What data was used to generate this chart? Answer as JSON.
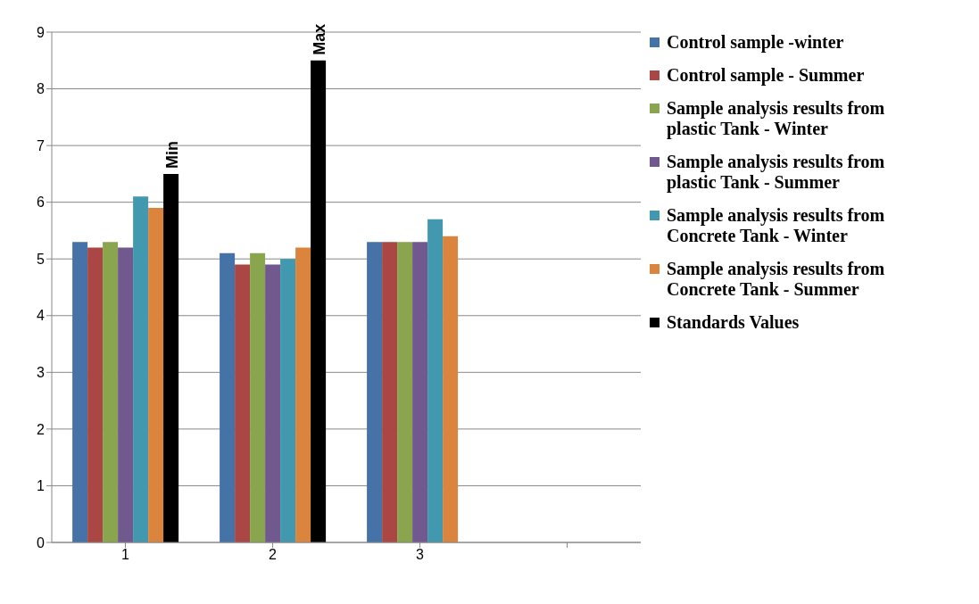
{
  "chart_data": {
    "type": "bar",
    "categories": [
      "1",
      "2",
      "3",
      null
    ],
    "series": [
      {
        "name": "Control sample -winter",
        "color": "#4572a7",
        "values": [
          5.3,
          5.1,
          5.3,
          null
        ]
      },
      {
        "name": "Control sample - Summer",
        "color": "#aa4643",
        "values": [
          5.2,
          4.9,
          5.3,
          null
        ]
      },
      {
        "name": "Sample analysis results from plastic Tank - Winter",
        "color": "#89a54e",
        "values": [
          5.3,
          5.1,
          5.3,
          null
        ]
      },
      {
        "name": "Sample analysis results from plastic Tank - Summer",
        "color": "#71588f",
        "values": [
          5.2,
          4.9,
          5.3,
          null
        ]
      },
      {
        "name": "Sample analysis results from Concrete Tank - Winter",
        "color": "#4198af",
        "values": [
          6.1,
          5.0,
          5.7,
          null
        ]
      },
      {
        "name": "Sample analysis results from Concrete Tank - Summer",
        "color": "#db843d",
        "values": [
          5.9,
          5.2,
          5.4,
          null
        ]
      },
      {
        "name": "Standards Values",
        "color": "#000000",
        "values": [
          6.5,
          8.5,
          null,
          null
        ]
      }
    ],
    "ylim": [
      0,
      9
    ],
    "yticks": [
      0,
      1,
      2,
      3,
      4,
      5,
      6,
      7,
      8,
      9
    ],
    "grid": "y",
    "legend": "right",
    "annotations": [
      "Min",
      "Max"
    ]
  }
}
